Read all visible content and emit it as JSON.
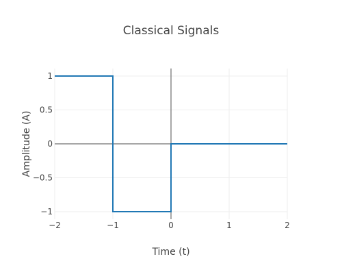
{
  "chart_data": {
    "type": "line",
    "title": "Classical Signals",
    "xlabel": "Time (t)",
    "ylabel": "Amplitude (A)",
    "xlim": [
      -2,
      2
    ],
    "ylim": [
      -1.05,
      1.05
    ],
    "xticks": [
      -2,
      -1,
      0,
      1,
      2
    ],
    "xtick_labels": [
      "−2",
      "−1",
      "0",
      "1",
      "2"
    ],
    "yticks": [
      1,
      0.5,
      0,
      -0.5,
      -1
    ],
    "ytick_labels": [
      "1",
      "0.5",
      "0",
      "−0.5",
      "−1"
    ],
    "grid": true,
    "zero_lines": true,
    "series": [
      {
        "name": "signal",
        "color": "#1f77b4",
        "x": [
          -2,
          -1,
          -1,
          0,
          0,
          2
        ],
        "y": [
          1,
          1,
          -1,
          -1,
          0,
          0
        ]
      }
    ]
  }
}
